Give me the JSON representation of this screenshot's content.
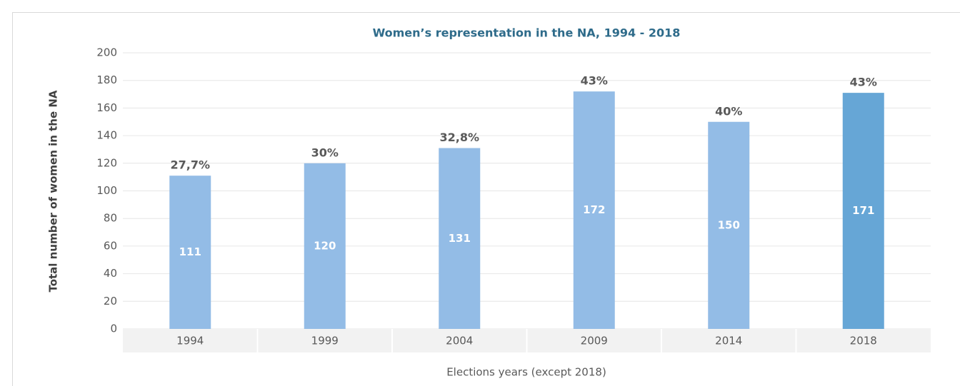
{
  "chart_data": {
    "type": "bar",
    "title": "Women’s representation in the NA, 1994 - 2018",
    "ylabel": "Total number of women in the NA",
    "xlabel": "Elections years (except 2018)",
    "categories": [
      "1994",
      "1999",
      "2004",
      "2009",
      "2014",
      "2018"
    ],
    "values": [
      111,
      120,
      131,
      172,
      150,
      171
    ],
    "annotations": [
      "27,7%",
      "30%",
      "32,8%",
      "43%",
      "40%",
      "43%"
    ],
    "colors": [
      "#93bce6",
      "#93bce6",
      "#93bce6",
      "#93bce6",
      "#93bce6",
      "#66a6d6"
    ],
    "ylim": [
      0,
      200
    ],
    "yticks": [
      0,
      20,
      40,
      60,
      80,
      100,
      120,
      140,
      160,
      180,
      200
    ],
    "grid": true
  }
}
